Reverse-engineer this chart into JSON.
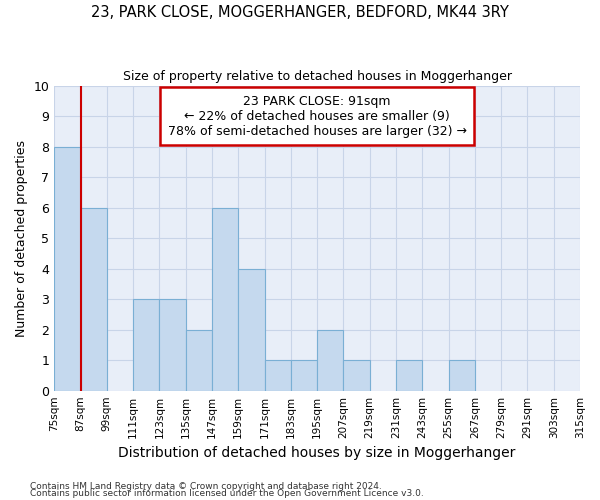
{
  "title": "23, PARK CLOSE, MOGGERHANGER, BEDFORD, MK44 3RY",
  "subtitle": "Size of property relative to detached houses in Moggerhanger",
  "xlabel": "Distribution of detached houses by size in Moggerhanger",
  "ylabel": "Number of detached properties",
  "bar_color": "#c5d9ee",
  "bar_edge_color": "#7aafd4",
  "bins": [
    "75sqm",
    "87sqm",
    "99sqm",
    "111sqm",
    "123sqm",
    "135sqm",
    "147sqm",
    "159sqm",
    "171sqm",
    "183sqm",
    "195sqm",
    "207sqm",
    "219sqm",
    "231sqm",
    "243sqm",
    "255sqm",
    "267sqm",
    "279sqm",
    "291sqm",
    "303sqm",
    "315sqm"
  ],
  "values": [
    8,
    6,
    0,
    3,
    3,
    2,
    6,
    4,
    1,
    1,
    2,
    1,
    0,
    1,
    0,
    1,
    0,
    0,
    0,
    0
  ],
  "annotation_text": "23 PARK CLOSE: 91sqm\n← 22% of detached houses are smaller (9)\n78% of semi-detached houses are larger (32) →",
  "annotation_box_color": "white",
  "annotation_box_edge_color": "#cc0000",
  "property_line_x": 87,
  "property_line_color": "#cc0000",
  "ylim": [
    0,
    10
  ],
  "yticks": [
    0,
    1,
    2,
    3,
    4,
    5,
    6,
    7,
    8,
    9,
    10
  ],
  "grid_color": "#c8d4e8",
  "background_color": "#e8eef8",
  "footnote1": "Contains HM Land Registry data © Crown copyright and database right 2024.",
  "footnote2": "Contains public sector information licensed under the Open Government Licence v3.0."
}
